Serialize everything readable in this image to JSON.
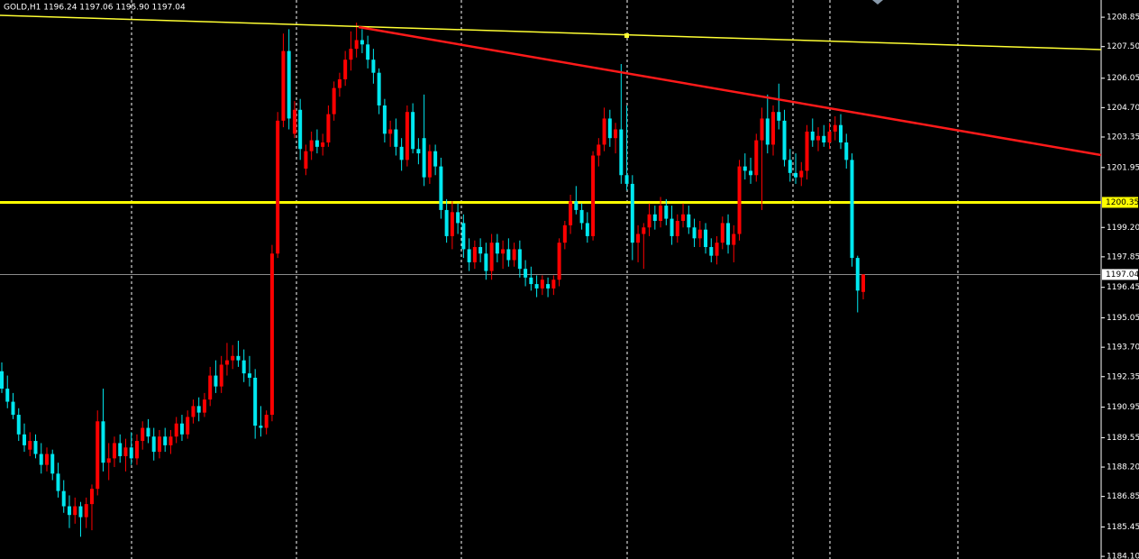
{
  "chart_data": {
    "type": "candlestick",
    "title": "GOLD,H1  1196.24 1197.06 1195.90 1197.04",
    "up_color": "#ff0000",
    "down_color": "#00e8f0",
    "ylim": [
      1183.98,
      1209.64
    ],
    "yticks": [
      1208.85,
      {
        "value": 1207.5,
        "label": "1207.50"
      },
      1206.05,
      {
        "value": 1204.7,
        "label": "1204.70"
      },
      1203.35,
      1201.95,
      {
        "value": 1199.2,
        "label": "1199.20"
      },
      1197.85,
      1196.45,
      1195.05,
      {
        "value": 1193.7,
        "label": "1193.70"
      },
      1192.35,
      1190.95,
      1189.55,
      {
        "value": 1188.2,
        "label": "1188.20"
      },
      1186.85,
      1185.45,
      {
        "value": 1184.1,
        "label": "1184.10"
      }
    ],
    "level": 1200.35,
    "level_color": "#ffff00",
    "price_line": 1197.04,
    "ohlc": [
      [
        1192.6,
        1193.0,
        1191.6,
        1191.8
      ],
      [
        1191.8,
        1192.4,
        1190.9,
        1191.2
      ],
      [
        1191.2,
        1191.6,
        1190.4,
        1190.6
      ],
      [
        1190.6,
        1190.9,
        1189.4,
        1189.7
      ],
      [
        1189.7,
        1190.2,
        1188.9,
        1189.2
      ],
      [
        1189.0,
        1189.8,
        1188.7,
        1189.4
      ],
      [
        1189.4,
        1189.7,
        1188.6,
        1188.8
      ],
      [
        1188.8,
        1189.3,
        1187.9,
        1188.3
      ],
      [
        1188.3,
        1189.1,
        1188.0,
        1188.8
      ],
      [
        1188.8,
        1189.0,
        1187.6,
        1187.9
      ],
      [
        1187.9,
        1188.4,
        1186.8,
        1187.1
      ],
      [
        1187.1,
        1187.6,
        1186.1,
        1186.4
      ],
      [
        1186.4,
        1186.9,
        1185.4,
        1186.0
      ],
      [
        1186.0,
        1186.8,
        1185.6,
        1186.4
      ],
      [
        1186.4,
        1186.6,
        1185.0,
        1185.9
      ],
      [
        1185.9,
        1186.8,
        1185.4,
        1186.5
      ],
      [
        1186.5,
        1187.4,
        1185.3,
        1187.2
      ],
      [
        1187.2,
        1190.8,
        1186.9,
        1190.3
      ],
      [
        1190.3,
        1191.8,
        1188.0,
        1188.4
      ],
      [
        1188.4,
        1189.3,
        1187.6,
        1188.6
      ],
      [
        1188.6,
        1189.6,
        1188.2,
        1189.3
      ],
      [
        1189.3,
        1189.7,
        1188.4,
        1188.7
      ],
      [
        1188.7,
        1189.5,
        1188.0,
        1189.1
      ],
      [
        1189.1,
        1189.8,
        1188.3,
        1188.6
      ],
      [
        1188.6,
        1189.7,
        1188.3,
        1189.4
      ],
      [
        1189.4,
        1190.3,
        1189.0,
        1190.0
      ],
      [
        1190.0,
        1190.4,
        1189.3,
        1189.6
      ],
      [
        1189.6,
        1190.0,
        1188.5,
        1188.9
      ],
      [
        1188.9,
        1189.9,
        1188.6,
        1189.6
      ],
      [
        1189.6,
        1190.0,
        1188.9,
        1189.2
      ],
      [
        1189.2,
        1189.9,
        1188.8,
        1189.6
      ],
      [
        1189.6,
        1190.5,
        1189.3,
        1190.2
      ],
      [
        1190.2,
        1190.6,
        1189.4,
        1189.7
      ],
      [
        1189.7,
        1190.8,
        1189.5,
        1190.5
      ],
      [
        1190.5,
        1191.3,
        1190.2,
        1191.0
      ],
      [
        1191.0,
        1191.4,
        1190.3,
        1190.7
      ],
      [
        1190.7,
        1191.6,
        1190.5,
        1191.3
      ],
      [
        1191.3,
        1192.8,
        1191.0,
        1192.4
      ],
      [
        1192.4,
        1193.1,
        1191.6,
        1191.9
      ],
      [
        1191.9,
        1193.3,
        1191.6,
        1192.9
      ],
      [
        1192.9,
        1193.9,
        1192.4,
        1193.1
      ],
      [
        1193.1,
        1193.8,
        1192.7,
        1193.3
      ],
      [
        1193.3,
        1194.0,
        1192.8,
        1193.1
      ],
      [
        1193.1,
        1193.6,
        1192.1,
        1192.5
      ],
      [
        1192.5,
        1193.3,
        1191.9,
        1192.3
      ],
      [
        1192.3,
        1192.7,
        1189.5,
        1190.1
      ],
      [
        1190.1,
        1191.0,
        1189.6,
        1190.0
      ],
      [
        1190.0,
        1190.8,
        1189.7,
        1190.6
      ],
      [
        1190.6,
        1198.4,
        1190.3,
        1198.0
      ],
      [
        1198.0,
        1204.5,
        1197.8,
        1204.1
      ],
      [
        1204.1,
        1208.1,
        1203.8,
        1207.3
      ],
      [
        1207.3,
        1208.3,
        1203.7,
        1204.2
      ],
      [
        1203.5,
        1205.0,
        1203.3,
        1204.6
      ],
      [
        1204.6,
        1205.1,
        1202.3,
        1202.8
      ],
      [
        1201.9,
        1203.0,
        1201.6,
        1202.7
      ],
      [
        1202.7,
        1203.6,
        1202.3,
        1203.2
      ],
      [
        1203.2,
        1203.7,
        1202.6,
        1202.9
      ],
      [
        1202.9,
        1203.5,
        1202.5,
        1203.1
      ],
      [
        1203.1,
        1204.8,
        1202.9,
        1204.4
      ],
      [
        1204.4,
        1205.9,
        1204.1,
        1205.6
      ],
      [
        1205.6,
        1206.3,
        1205.2,
        1206.0
      ],
      [
        1206.0,
        1207.3,
        1205.7,
        1206.9
      ],
      [
        1206.9,
        1208.2,
        1206.4,
        1207.4
      ],
      [
        1207.4,
        1208.6,
        1207.0,
        1207.8
      ],
      [
        1207.8,
        1208.3,
        1207.2,
        1207.6
      ],
      [
        1207.6,
        1208.0,
        1206.5,
        1206.9
      ],
      [
        1206.9,
        1207.4,
        1205.8,
        1206.3
      ],
      [
        1206.3,
        1206.5,
        1204.4,
        1204.8
      ],
      [
        1204.8,
        1205.1,
        1203.1,
        1203.5
      ],
      [
        1203.5,
        1204.1,
        1202.9,
        1203.7
      ],
      [
        1203.7,
        1204.2,
        1202.5,
        1202.9
      ],
      [
        1202.9,
        1203.3,
        1201.8,
        1202.3
      ],
      [
        1202.3,
        1204.8,
        1202.0,
        1204.5
      ],
      [
        1204.5,
        1204.9,
        1202.6,
        1202.8
      ],
      [
        1202.8,
        1203.3,
        1202.1,
        1202.6
      ],
      [
        1203.3,
        1205.3,
        1201.1,
        1201.5
      ],
      [
        1201.5,
        1203.0,
        1201.2,
        1202.7
      ],
      [
        1202.7,
        1203.0,
        1201.6,
        1202.0
      ],
      [
        1202.0,
        1202.4,
        1199.6,
        1200.0
      ],
      [
        1200.0,
        1200.5,
        1198.5,
        1198.8
      ],
      [
        1198.8,
        1200.4,
        1198.2,
        1199.9
      ],
      [
        1199.9,
        1200.3,
        1198.9,
        1199.4
      ],
      [
        1199.4,
        1199.8,
        1197.8,
        1198.2
      ],
      [
        1198.2,
        1198.7,
        1197.2,
        1197.6
      ],
      [
        1197.6,
        1198.6,
        1197.3,
        1198.3
      ],
      [
        1198.3,
        1198.7,
        1197.6,
        1198.0
      ],
      [
        1198.0,
        1198.5,
        1196.8,
        1197.2
      ],
      [
        1197.2,
        1198.9,
        1196.8,
        1198.5
      ],
      [
        1198.5,
        1198.9,
        1197.6,
        1198.0
      ],
      [
        1198.0,
        1198.6,
        1197.3,
        1198.2
      ],
      [
        1198.2,
        1198.7,
        1197.4,
        1197.7
      ],
      [
        1197.7,
        1198.5,
        1197.4,
        1198.2
      ],
      [
        1198.2,
        1198.6,
        1196.9,
        1197.3
      ],
      [
        1197.3,
        1197.7,
        1196.5,
        1196.9
      ],
      [
        1196.9,
        1197.4,
        1196.3,
        1196.6
      ],
      [
        1196.6,
        1197.0,
        1196.0,
        1196.4
      ],
      [
        1196.4,
        1197.0,
        1196.1,
        1196.8
      ],
      [
        1196.6,
        1196.9,
        1196.0,
        1196.4
      ],
      [
        1196.4,
        1197.0,
        1196.1,
        1196.8
      ],
      [
        1196.8,
        1198.7,
        1196.5,
        1198.5
      ],
      [
        1198.5,
        1199.5,
        1198.2,
        1199.3
      ],
      [
        1199.3,
        1200.7,
        1198.9,
        1200.4
      ],
      [
        1200.4,
        1201.1,
        1199.8,
        1200.0
      ],
      [
        1200.0,
        1200.3,
        1199.1,
        1199.4
      ],
      [
        1199.4,
        1199.9,
        1198.5,
        1198.8
      ],
      [
        1198.8,
        1202.7,
        1198.6,
        1202.5
      ],
      [
        1202.5,
        1203.3,
        1202.0,
        1203.0
      ],
      [
        1203.0,
        1204.7,
        1202.7,
        1204.2
      ],
      [
        1204.2,
        1204.6,
        1202.9,
        1203.3
      ],
      [
        1203.3,
        1204.0,
        1202.6,
        1203.7
      ],
      [
        1203.7,
        1206.7,
        1201.2,
        1201.6
      ],
      [
        1201.6,
        1204.8,
        1200.9,
        1201.2
      ],
      [
        1201.2,
        1201.6,
        1197.7,
        1198.5
      ],
      [
        1198.5,
        1199.3,
        1197.6,
        1198.9
      ],
      [
        1198.9,
        1199.4,
        1197.3,
        1199.2
      ],
      [
        1199.2,
        1200.3,
        1198.8,
        1199.8
      ],
      [
        1199.8,
        1200.2,
        1199.1,
        1199.5
      ],
      [
        1199.5,
        1200.6,
        1199.2,
        1200.2
      ],
      [
        1200.2,
        1200.5,
        1199.3,
        1199.6
      ],
      [
        1199.6,
        1200.2,
        1198.4,
        1198.8
      ],
      [
        1198.8,
        1199.8,
        1198.5,
        1199.5
      ],
      [
        1199.5,
        1200.3,
        1199.2,
        1199.8
      ],
      [
        1199.8,
        1200.2,
        1198.9,
        1199.2
      ],
      [
        1199.2,
        1199.6,
        1198.3,
        1198.7
      ],
      [
        1198.7,
        1199.5,
        1198.3,
        1199.1
      ],
      [
        1199.1,
        1199.4,
        1198.0,
        1198.3
      ],
      [
        1198.3,
        1198.7,
        1197.6,
        1197.9
      ],
      [
        1197.9,
        1198.8,
        1197.5,
        1198.5
      ],
      [
        1198.5,
        1199.7,
        1198.2,
        1199.4
      ],
      [
        1199.4,
        1199.8,
        1198.0,
        1198.4
      ],
      [
        1198.4,
        1199.3,
        1197.6,
        1198.9
      ],
      [
        1198.9,
        1202.3,
        1198.6,
        1202.0
      ],
      [
        1202.0,
        1202.6,
        1201.4,
        1201.8
      ],
      [
        1201.8,
        1202.4,
        1201.2,
        1201.6
      ],
      [
        1201.6,
        1203.5,
        1201.3,
        1203.2
      ],
      [
        1203.2,
        1204.7,
        1200.0,
        1204.2
      ],
      [
        1204.2,
        1205.3,
        1202.6,
        1203.0
      ],
      [
        1203.0,
        1204.8,
        1202.5,
        1204.5
      ],
      [
        1204.5,
        1205.8,
        1203.7,
        1204.1
      ],
      [
        1204.1,
        1204.6,
        1202.0,
        1202.3
      ],
      [
        1202.3,
        1202.8,
        1201.3,
        1201.7
      ],
      [
        1201.7,
        1202.6,
        1201.2,
        1201.5
      ],
      [
        1201.5,
        1202.2,
        1201.1,
        1201.8
      ],
      [
        1201.8,
        1203.9,
        1201.4,
        1203.6
      ],
      [
        1203.6,
        1204.2,
        1202.9,
        1203.2
      ],
      [
        1203.2,
        1203.8,
        1202.7,
        1203.4
      ],
      [
        1203.4,
        1203.9,
        1202.9,
        1203.1
      ],
      [
        1203.1,
        1204.0,
        1202.8,
        1203.6
      ],
      [
        1203.6,
        1204.3,
        1203.2,
        1203.9
      ],
      [
        1203.9,
        1204.4,
        1202.8,
        1203.1
      ],
      [
        1203.1,
        1203.5,
        1201.9,
        1202.3
      ],
      [
        1202.3,
        1202.6,
        1197.4,
        1197.8
      ],
      [
        1197.8,
        1197.9,
        1195.3,
        1196.3
      ],
      [
        1196.24,
        1197.06,
        1195.9,
        1197.04
      ]
    ]
  }
}
